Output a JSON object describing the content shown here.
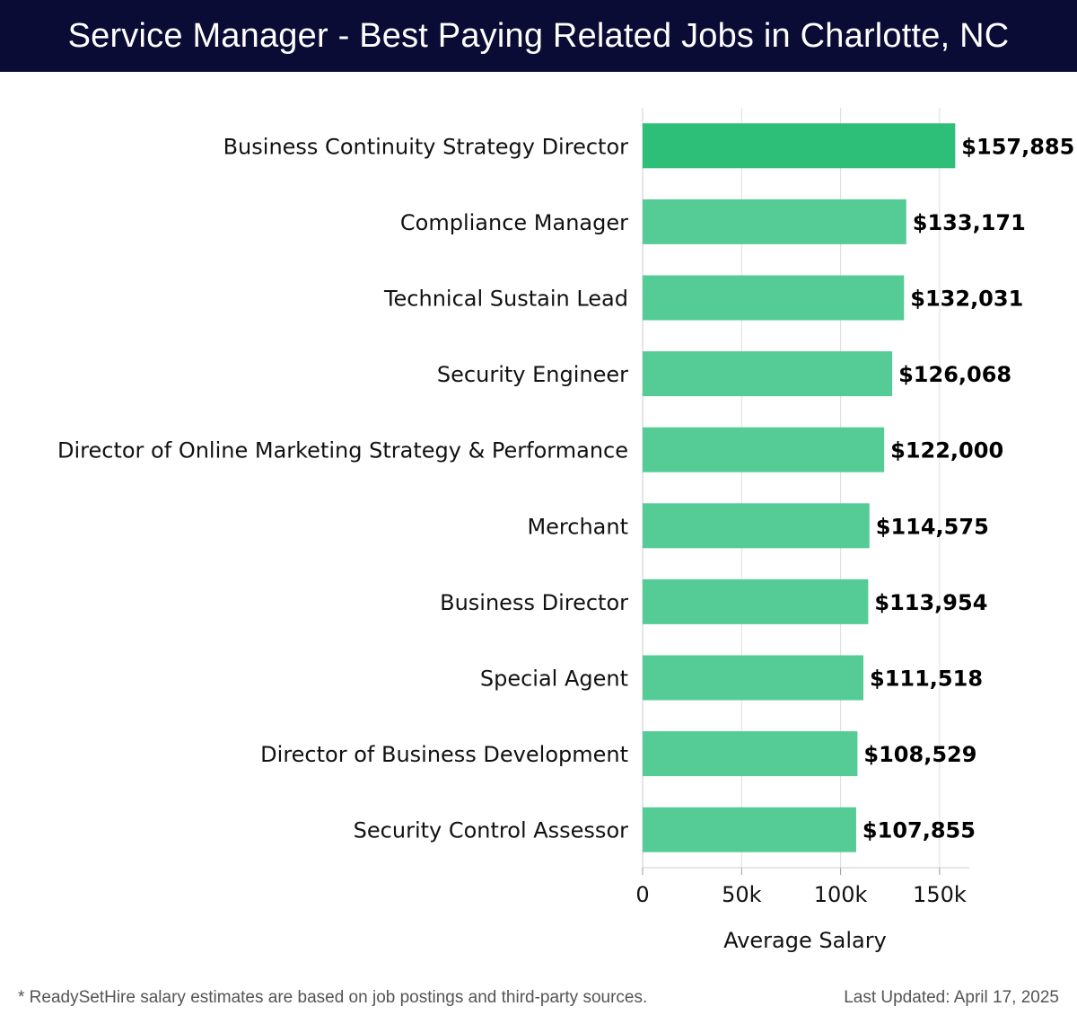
{
  "header": {
    "title": "Service Manager - Best Paying Related Jobs in Charlotte, NC"
  },
  "footer": {
    "note": "* ReadySetHire salary estimates are based on job postings and third-party sources.",
    "updated": "Last Updated: April 17, 2025"
  },
  "colors": {
    "header_bg": "#0b0c35",
    "bar_top": "#2dbf78",
    "bar": "#55cc95",
    "grid": "#dddddd"
  },
  "chart_data": {
    "type": "bar",
    "orientation": "horizontal",
    "xlabel": "Average Salary",
    "xlim": [
      0,
      165000
    ],
    "xticks": [
      0,
      50000,
      100000,
      150000
    ],
    "xtick_labels": [
      "0",
      "50k",
      "100k",
      "150k"
    ],
    "grid": true,
    "categories": [
      "Business Continuity Strategy Director",
      "Compliance Manager",
      "Technical Sustain Lead",
      "Security Engineer",
      "Director of Online Marketing Strategy & Performance",
      "Merchant",
      "Business Director",
      "Special Agent",
      "Director of Business Development",
      "Security Control Assessor"
    ],
    "values": [
      157885,
      133171,
      132031,
      126068,
      122000,
      114575,
      113954,
      111518,
      108529,
      107855
    ],
    "value_labels": [
      "$157,885",
      "$133,171",
      "$132,031",
      "$126,068",
      "$122,000",
      "$114,575",
      "$113,954",
      "$111,518",
      "$108,529",
      "$107,855"
    ]
  }
}
